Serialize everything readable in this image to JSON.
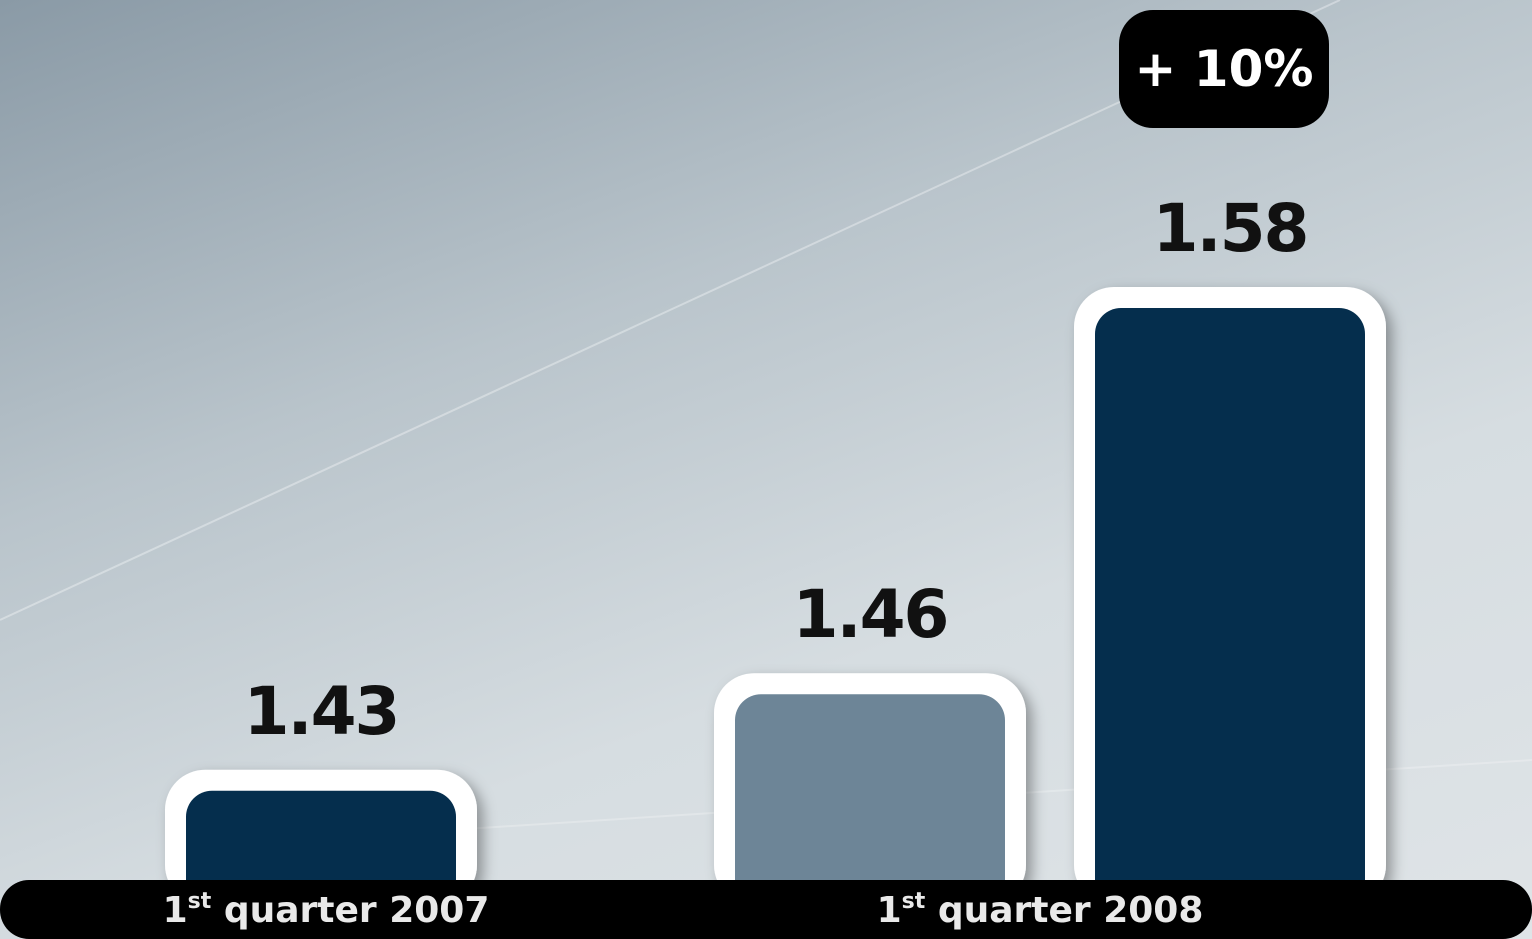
{
  "chart_data": {
    "type": "bar",
    "title": "",
    "xlabel": "",
    "ylabel": "",
    "groups": [
      {
        "label": "quarter 2007",
        "ordinal": "1",
        "ordinal_suffix": "st",
        "bars": [
          {
            "value": 1.43,
            "value_label": "1.43",
            "color": "#052e4d"
          }
        ]
      },
      {
        "label": "quarter 2008",
        "ordinal": "1",
        "ordinal_suffix": "st",
        "bars": [
          {
            "value": 1.46,
            "value_label": "1.46",
            "color": "#6d8597"
          },
          {
            "value": 1.58,
            "value_label": "1.58",
            "color": "#052e4d"
          }
        ]
      }
    ],
    "annotation": {
      "text": "+ 10%"
    },
    "ylim": [
      1.3942,
      1.58
    ],
    "grid": false,
    "legend": "none"
  },
  "colors": {
    "bar_border": "#ffffff",
    "axis_band": "#000000",
    "badge": "#000000",
    "axis_text": "#e9e9e9",
    "value_text": "#111111"
  }
}
